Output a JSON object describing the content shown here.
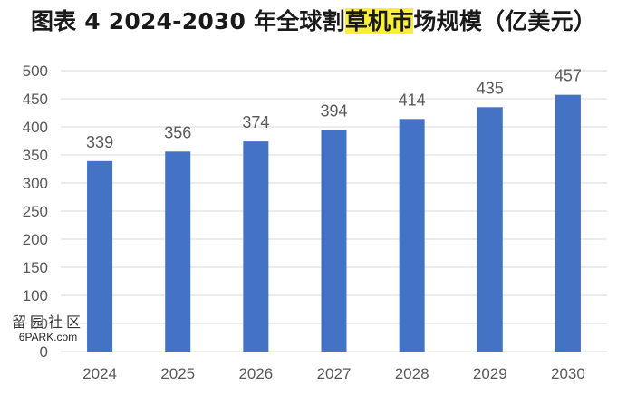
{
  "title": {
    "prefix": "图表 4 2024-2030 年全球割",
    "highlight": "草机市",
    "suffix": "场规模（亿美元）"
  },
  "watermark": {
    "line1": "留园社区",
    "line2": "6PARK.com"
  },
  "colors": {
    "bar": "#4472c4",
    "grid": "#d9d9d9",
    "axis_text": "#595959",
    "highlight": "#f7ef3c"
  },
  "chart_data": {
    "type": "bar",
    "title": "图表 4 2024-2030 年全球割草机市场规模（亿美元）",
    "categories": [
      "2024",
      "2025",
      "2026",
      "2027",
      "2028",
      "2029",
      "2030"
    ],
    "values": [
      339,
      356,
      374,
      394,
      414,
      435,
      457
    ],
    "data_labels": [
      "339",
      "356",
      "374",
      "394",
      "414",
      "435",
      "457"
    ],
    "ylim": [
      0,
      500
    ],
    "yticks": [
      0,
      50,
      100,
      150,
      200,
      250,
      300,
      350,
      400,
      450,
      500
    ],
    "grid": true,
    "legend": "none",
    "xlabel": "",
    "ylabel": ""
  }
}
